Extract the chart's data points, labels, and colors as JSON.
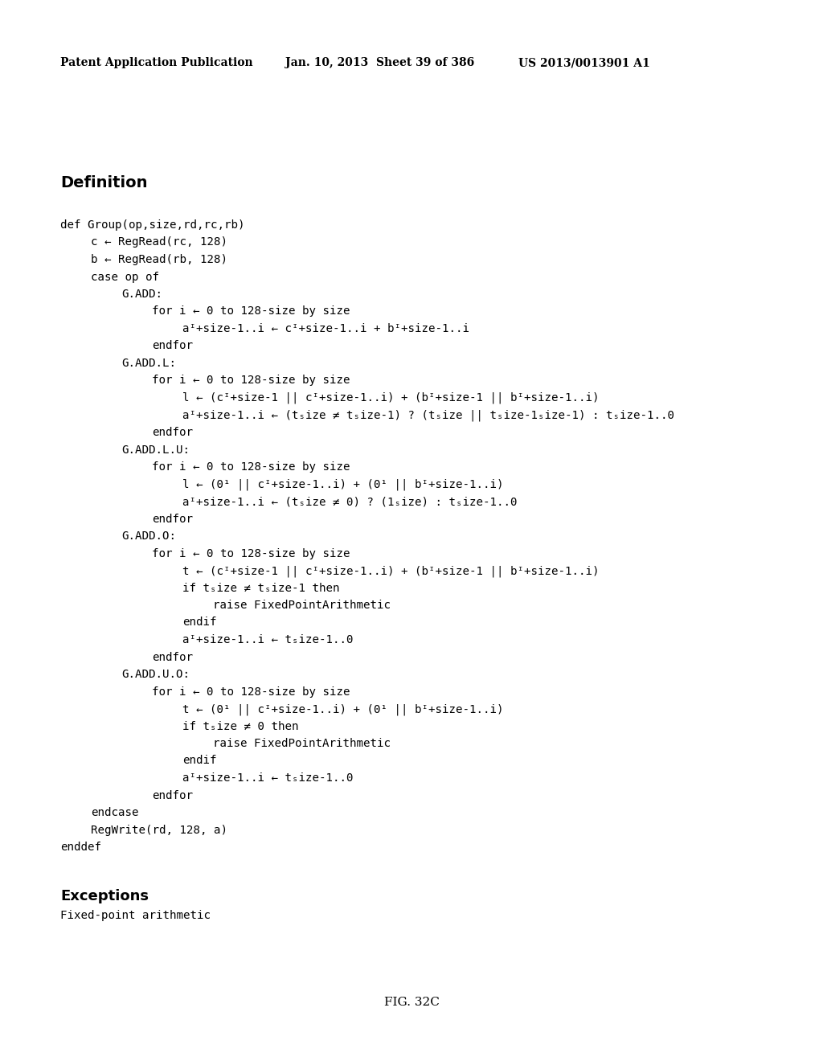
{
  "bg_color": "#ffffff",
  "header_left": "Patent Application Publication",
  "header_mid": "Jan. 10, 2013  Sheet 39 of 386",
  "header_right": "US 2013/0013901 A1",
  "section_title": "Definition",
  "caption": "FIG. 32C",
  "exceptions_title": "Exceptions",
  "exceptions_body": "Fixed-point arithmetic",
  "figsize": [
    10.24,
    13.2
  ],
  "dpi": 100,
  "lines": [
    [
      0,
      "def Group(op,size,rd,rc,rb)"
    ],
    [
      1,
      "c ← RegRead(rc, 128)"
    ],
    [
      1,
      "b ← RegRead(rb, 128)"
    ],
    [
      1,
      "case op of"
    ],
    [
      2,
      "G.ADD:"
    ],
    [
      3,
      "for i ← 0 to 128-size by size"
    ],
    [
      4,
      "aᴵ+size-1..i ← cᴵ+size-1..i + bᴵ+size-1..i"
    ],
    [
      3,
      "endfor"
    ],
    [
      2,
      "G.ADD.L:"
    ],
    [
      3,
      "for i ← 0 to 128-size by size"
    ],
    [
      4,
      "l ← (cᴵ+size-1 || cᴵ+size-1..i) + (bᴵ+size-1 || bᴵ+size-1..i)"
    ],
    [
      4,
      "aᴵ+size-1..i ← (tₛize ≠ tₛize-1) ? (tₛize || tₛize-1ₛize-1) : tₛize-1..0"
    ],
    [
      3,
      "endfor"
    ],
    [
      2,
      "G.ADD.L.U:"
    ],
    [
      3,
      "for i ← 0 to 128-size by size"
    ],
    [
      4,
      "l ← (0¹ || cᴵ+size-1..i) + (0¹ || bᴵ+size-1..i)"
    ],
    [
      4,
      "aᴵ+size-1..i ← (tₛize ≠ 0) ? (1ₛize) : tₛize-1..0"
    ],
    [
      3,
      "endfor"
    ],
    [
      2,
      "G.ADD.O:"
    ],
    [
      3,
      "for i ← 0 to 128-size by size"
    ],
    [
      4,
      "t ← (cᴵ+size-1 || cᴵ+size-1..i) + (bᴵ+size-1 || bᴵ+size-1..i)"
    ],
    [
      4,
      "if tₛize ≠ tₛize-1 then"
    ],
    [
      5,
      "raise FixedPointArithmetic"
    ],
    [
      4,
      "endif"
    ],
    [
      4,
      "aᴵ+size-1..i ← tₛize-1..0"
    ],
    [
      3,
      "endfor"
    ],
    [
      2,
      "G.ADD.U.O:"
    ],
    [
      3,
      "for i ← 0 to 128-size by size"
    ],
    [
      4,
      "t ← (0¹ || cᴵ+size-1..i) + (0¹ || bᴵ+size-1..i)"
    ],
    [
      4,
      "if tₛize ≠ 0 then"
    ],
    [
      5,
      "raise FixedPointArithmetic"
    ],
    [
      4,
      "endif"
    ],
    [
      4,
      "aᴵ+size-1..i ← tₛize-1..0"
    ],
    [
      3,
      "endfor"
    ],
    [
      1,
      "endcase"
    ],
    [
      1,
      "RegWrite(rd, 128, a)"
    ],
    [
      0,
      "enddef"
    ]
  ]
}
